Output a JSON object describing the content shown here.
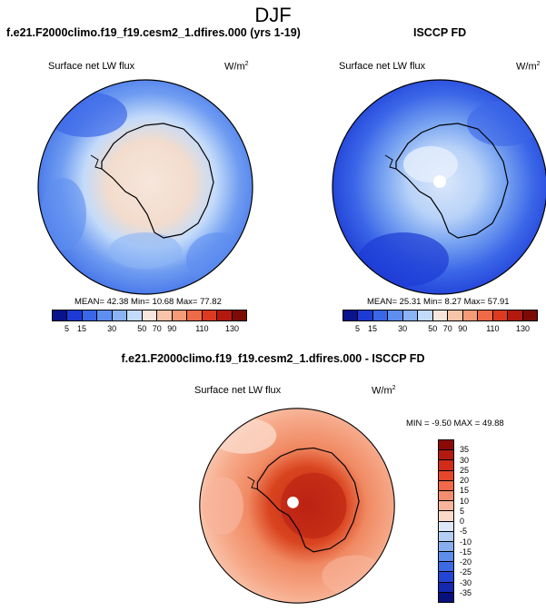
{
  "figure_title": "DJF",
  "panels": {
    "model": {
      "title": "f.e21.F2000climo.f19_f19.cesm2_1.dfires.000 (yrs 1-19)",
      "field_label": "Surface net LW flux",
      "units": "W/m",
      "units_exp": "2",
      "stats": "MEAN=  42.38   Min=  10.68   Max=  77.82",
      "colorbar_colors": [
        "#08138c",
        "#1d3bd4",
        "#3a66e8",
        "#5e8ef0",
        "#8ab4f5",
        "#c3dbfa",
        "#f6e6dc",
        "#f8c4a8",
        "#f59b78",
        "#ef6a48",
        "#dc3b22",
        "#b3190f",
        "#7d0a05"
      ],
      "colorbar_ticks": [
        "5",
        "15",
        "30",
        "50",
        "70",
        "90",
        "110",
        "130"
      ]
    },
    "obs": {
      "title": "ISCCP FD",
      "field_label": "Surface net LW flux",
      "units": "W/m",
      "units_exp": "2",
      "stats": "MEAN=  25.31   Min=   8.27   Max=  57.91",
      "colorbar_colors": [
        "#08138c",
        "#1d3bd4",
        "#3a66e8",
        "#5e8ef0",
        "#8ab4f5",
        "#c3dbfa",
        "#f6e6dc",
        "#f8c4a8",
        "#f59b78",
        "#ef6a48",
        "#dc3b22",
        "#b3190f",
        "#7d0a05"
      ],
      "colorbar_ticks": [
        "5",
        "15",
        "30",
        "50",
        "70",
        "90",
        "110",
        "130"
      ]
    },
    "diff": {
      "title": "f.e21.F2000climo.f19_f19.cesm2_1.dfires.000 - ISCCP FD",
      "field_label": "Surface net LW flux",
      "units": "W/m",
      "units_exp": "2",
      "stats": "MIN =  -9.50  MAX =  49.88",
      "colorbar_colors": [
        "#8c0a05",
        "#b3190f",
        "#d22b17",
        "#e5472a",
        "#f2694a",
        "#f58e70",
        "#f8b59c",
        "#fbd9c9",
        "#dce8f8",
        "#b4cdf3",
        "#88aef0",
        "#5e8eec",
        "#3b6ae3",
        "#2345d4",
        "#1428b0",
        "#07107c"
      ],
      "colorbar_ticks": [
        "35",
        "30",
        "25",
        "20",
        "15",
        "10",
        "5",
        "0",
        "-5",
        "-10",
        "-15",
        "-20",
        "-25",
        "-30",
        "-35"
      ]
    }
  }
}
